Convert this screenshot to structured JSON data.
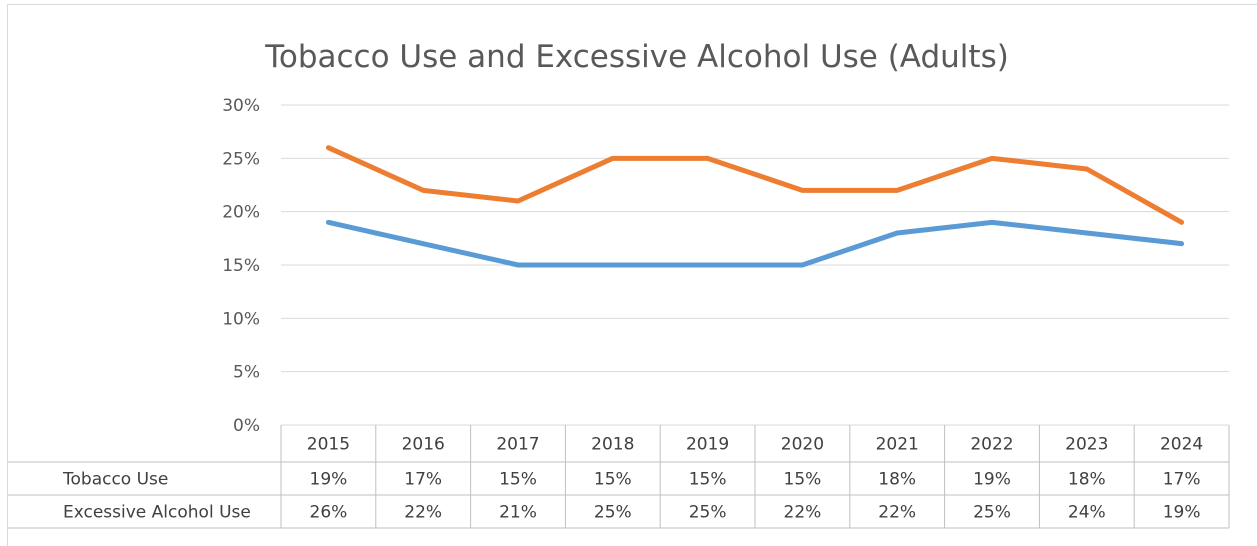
{
  "chart_data": {
    "type": "line",
    "title": "Tobacco Use and Excessive Alcohol Use (Adults)",
    "categories": [
      "2015",
      "2016",
      "2017",
      "2018",
      "2019",
      "2020",
      "2021",
      "2022",
      "2023",
      "2024"
    ],
    "ylim": [
      0,
      30
    ],
    "yticks": [
      "0%",
      "5%",
      "10%",
      "15%",
      "20%",
      "25%",
      "30%"
    ],
    "grid": true,
    "legend": "data table below chart",
    "series": [
      {
        "name": "Tobacco Use",
        "color": "#5b9bd5",
        "values": [
          19,
          17,
          15,
          15,
          15,
          15,
          18,
          19,
          18,
          17
        ],
        "labels": [
          "19%",
          "17%",
          "15%",
          "15%",
          "15%",
          "15%",
          "18%",
          "19%",
          "18%",
          "17%"
        ]
      },
      {
        "name": "Excessive Alcohol Use",
        "color": "#ed7d31",
        "values": [
          26,
          22,
          21,
          25,
          25,
          22,
          22,
          25,
          24,
          19
        ],
        "labels": [
          "26%",
          "22%",
          "21%",
          "25%",
          "25%",
          "22%",
          "22%",
          "25%",
          "24%",
          "19%"
        ]
      }
    ]
  }
}
